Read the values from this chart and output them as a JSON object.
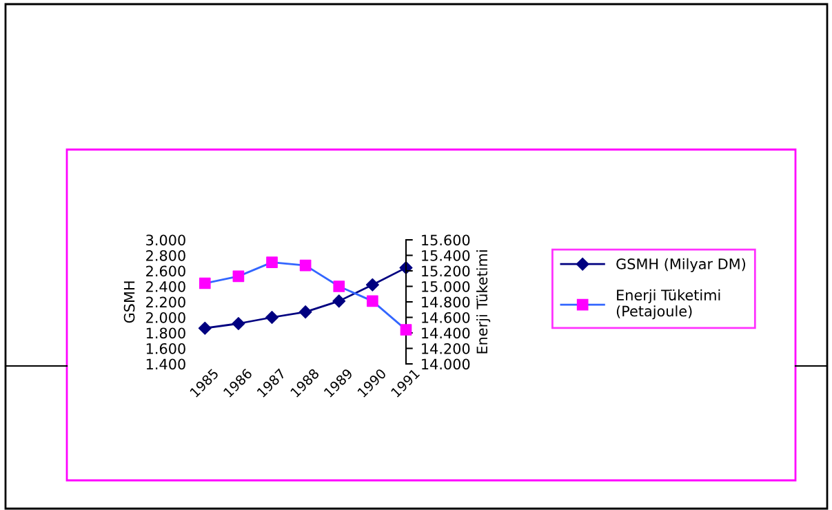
{
  "chart_data": {
    "type": "line",
    "categories": [
      "1985",
      "1986",
      "1987",
      "1988",
      "1989",
      "1990",
      "1991"
    ],
    "ylabel": "GSMH",
    "y2label": "Enerji Tüketimi",
    "series": [
      {
        "name": "GSMH (Milyar DM)",
        "color": "#000080",
        "marker": "diamond",
        "values": [
          1860,
          1920,
          2000,
          2070,
          2210,
          2420,
          2640
        ]
      },
      {
        "name": "Enerji Tüketimi\n(Petajoule)",
        "color": "#3366ff",
        "colors": [
          "#ff00ff",
          "#ff00ff",
          "#ff00ff",
          "#ff00ff",
          "#ff00ff",
          "#ff00ff",
          "#ff00ff"
        ],
        "marker": "square",
        "axis": "y2",
        "values": [
          15040,
          15130,
          15310,
          15270,
          15000,
          14810,
          14440
        ]
      }
    ],
    "ylim": [
      1400,
      3000
    ],
    "yticks": [
      {
        "value": 1400,
        "label": "1.400"
      },
      {
        "value": 1600,
        "label": "1.600"
      },
      {
        "value": 1800,
        "label": "1.800"
      },
      {
        "value": 2000,
        "label": "2.000"
      },
      {
        "value": 2200,
        "label": "2.200"
      },
      {
        "value": 2400,
        "label": "2.400"
      },
      {
        "value": 2600,
        "label": "2.600"
      },
      {
        "value": 2800,
        "label": "2.800"
      },
      {
        "value": 3000,
        "label": "3.000"
      }
    ],
    "y2lim": [
      14000,
      15600
    ],
    "y2ticks": [
      {
        "value": 14000,
        "label": "14.000"
      },
      {
        "value": 14200,
        "label": "14.200"
      },
      {
        "value": 14400,
        "label": "14.400"
      },
      {
        "value": 14600,
        "label": "14.600"
      },
      {
        "value": 14800,
        "label": "14.800"
      },
      {
        "value": 15000,
        "label": "15.000"
      },
      {
        "value": 15200,
        "label": "15.200"
      },
      {
        "value": 15400,
        "label": "15.400"
      },
      {
        "value": 15600,
        "label": "15.600"
      }
    ],
    "grid": false,
    "legend": "right"
  }
}
